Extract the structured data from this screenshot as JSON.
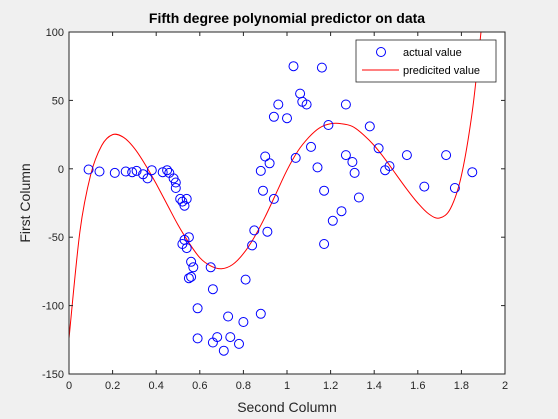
{
  "chart_data": {
    "type": "scatter",
    "title": "Fifth degree polynomial predictor on data",
    "xlabel": "Second Column",
    "ylabel": "First Column",
    "xlim": [
      0,
      2
    ],
    "ylim": [
      -150,
      100
    ],
    "xticks": [
      0,
      0.2,
      0.4,
      0.6,
      0.8,
      1,
      1.2,
      1.4,
      1.6,
      1.8,
      2
    ],
    "xtick_labels": [
      "0",
      "0.2",
      "0.4",
      "0.6",
      "0.8",
      "1",
      "1.2",
      "1.4",
      "1.6",
      "1.8",
      "2"
    ],
    "yticks": [
      -150,
      -100,
      -50,
      0,
      50,
      100
    ],
    "ytick_labels": [
      "-150",
      "-100",
      "-50",
      "0",
      "50",
      "100"
    ],
    "grid": false,
    "legend_position": "top-right",
    "colors": {
      "markers": "#0000ff",
      "curve": "#ff0000",
      "background": "#f0f0f0",
      "axes": "#ffffff"
    },
    "series": [
      {
        "name": "actual value",
        "type": "scatter",
        "marker": "circle",
        "color": "#0000ff",
        "points": [
          [
            0.09,
            -0.5
          ],
          [
            0.14,
            -2
          ],
          [
            0.21,
            -3
          ],
          [
            0.26,
            -2
          ],
          [
            0.29,
            -2.5
          ],
          [
            0.31,
            -1.5
          ],
          [
            0.34,
            -4
          ],
          [
            0.36,
            -7
          ],
          [
            0.38,
            -1
          ],
          [
            0.43,
            -2.5
          ],
          [
            0.45,
            -1
          ],
          [
            0.46,
            -3
          ],
          [
            0.48,
            -7
          ],
          [
            0.49,
            -10
          ],
          [
            0.49,
            -14
          ],
          [
            0.51,
            -22
          ],
          [
            0.52,
            -24
          ],
          [
            0.53,
            -27
          ],
          [
            0.54,
            -22
          ],
          [
            0.52,
            -55
          ],
          [
            0.53,
            -52
          ],
          [
            0.54,
            -58
          ],
          [
            0.55,
            -50
          ],
          [
            0.56,
            -68
          ],
          [
            0.57,
            -72
          ],
          [
            0.55,
            -80
          ],
          [
            0.56,
            -79
          ],
          [
            0.59,
            -102
          ],
          [
            0.59,
            -124
          ],
          [
            0.65,
            -72
          ],
          [
            0.66,
            -88
          ],
          [
            0.66,
            -127
          ],
          [
            0.68,
            -123
          ],
          [
            0.71,
            -133
          ],
          [
            0.73,
            -108
          ],
          [
            0.74,
            -123
          ],
          [
            0.78,
            -128
          ],
          [
            0.8,
            -112
          ],
          [
            0.81,
            -81
          ],
          [
            0.84,
            -56
          ],
          [
            0.85,
            -45
          ],
          [
            0.88,
            -106
          ],
          [
            0.88,
            -1.5
          ],
          [
            0.89,
            -16
          ],
          [
            0.9,
            9
          ],
          [
            0.91,
            -46
          ],
          [
            0.92,
            4
          ],
          [
            0.94,
            -22
          ],
          [
            0.94,
            38
          ],
          [
            0.96,
            47
          ],
          [
            1.0,
            37
          ],
          [
            1.03,
            75
          ],
          [
            1.04,
            8
          ],
          [
            1.06,
            55
          ],
          [
            1.07,
            49
          ],
          [
            1.09,
            47
          ],
          [
            1.11,
            16
          ],
          [
            1.14,
            1
          ],
          [
            1.16,
            74
          ],
          [
            1.17,
            -16
          ],
          [
            1.17,
            -55
          ],
          [
            1.19,
            32
          ],
          [
            1.21,
            -38
          ],
          [
            1.25,
            -31
          ],
          [
            1.27,
            47
          ],
          [
            1.27,
            10
          ],
          [
            1.3,
            5
          ],
          [
            1.31,
            -3
          ],
          [
            1.33,
            -21
          ],
          [
            1.38,
            31
          ],
          [
            1.42,
            15
          ],
          [
            1.45,
            -1
          ],
          [
            1.47,
            2
          ],
          [
            1.55,
            10
          ],
          [
            1.63,
            -13
          ],
          [
            1.73,
            10
          ],
          [
            1.77,
            -14
          ],
          [
            1.85,
            -2.5
          ]
        ]
      },
      {
        "name": "predicited value",
        "type": "line",
        "color": "#ff0000",
        "points": [
          [
            0,
            -124
          ],
          [
            0.05,
            -46
          ],
          [
            0.1,
            -4
          ],
          [
            0.15,
            17
          ],
          [
            0.2,
            25
          ],
          [
            0.25,
            23
          ],
          [
            0.3,
            15
          ],
          [
            0.35,
            3
          ],
          [
            0.4,
            -11
          ],
          [
            0.45,
            -26
          ],
          [
            0.5,
            -41
          ],
          [
            0.55,
            -54
          ],
          [
            0.6,
            -65
          ],
          [
            0.65,
            -71
          ],
          [
            0.7,
            -73
          ],
          [
            0.75,
            -70
          ],
          [
            0.8,
            -62
          ],
          [
            0.85,
            -50
          ],
          [
            0.9,
            -35
          ],
          [
            0.95,
            -18
          ],
          [
            1.0,
            -1
          ],
          [
            1.05,
            13
          ],
          [
            1.1,
            23
          ],
          [
            1.15,
            30
          ],
          [
            1.2,
            33
          ],
          [
            1.25,
            33
          ],
          [
            1.3,
            31
          ],
          [
            1.35,
            25
          ],
          [
            1.4,
            17
          ],
          [
            1.45,
            7
          ],
          [
            1.5,
            -4
          ],
          [
            1.55,
            -15
          ],
          [
            1.6,
            -25
          ],
          [
            1.65,
            -33
          ],
          [
            1.7,
            -36
          ],
          [
            1.75,
            -29
          ],
          [
            1.8,
            -5
          ],
          [
            1.85,
            42
          ],
          [
            1.89,
            100
          ]
        ]
      }
    ]
  }
}
